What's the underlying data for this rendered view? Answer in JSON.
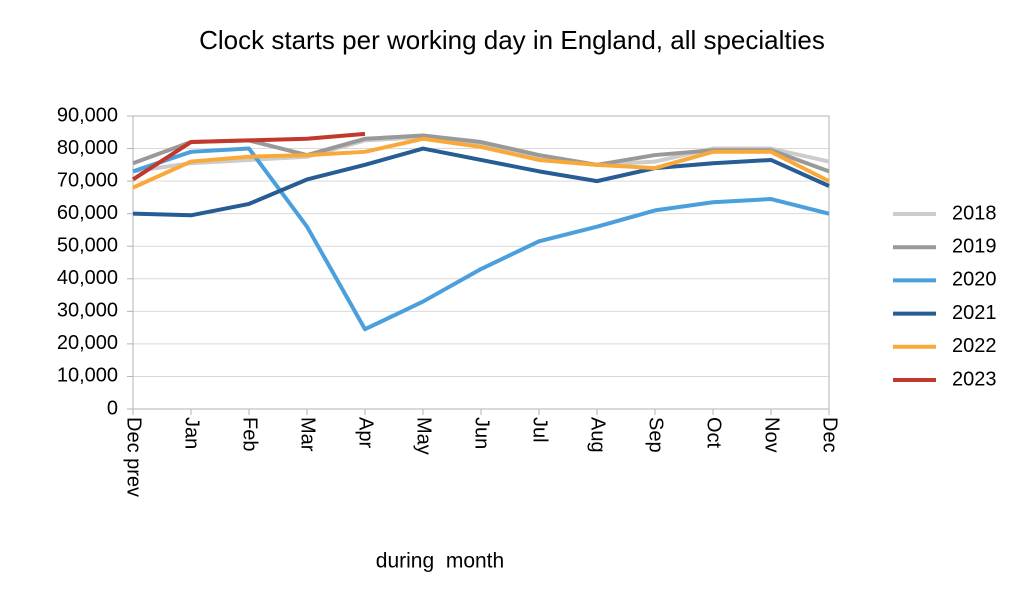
{
  "chart_data": {
    "type": "line",
    "title": "Clock starts per working day in England, all specialties",
    "x_label": "during  month",
    "categories": [
      "Dec prev",
      "Jan",
      "Feb",
      "Mar",
      "Apr",
      "May",
      "Jun",
      "Jul",
      "Aug",
      "Sep",
      "Oct",
      "Nov",
      "Dec"
    ],
    "series": [
      {
        "name": "2018",
        "color": "#cccccc",
        "values": [
          73000,
          75500,
          76500,
          77500,
          82500,
          83500,
          81000,
          77000,
          75000,
          76000,
          80000,
          80000,
          76000
        ]
      },
      {
        "name": "2019",
        "color": "#999999",
        "values": [
          75500,
          82000,
          82500,
          78000,
          83000,
          84000,
          82000,
          78000,
          75000,
          78000,
          79500,
          79500,
          73000
        ]
      },
      {
        "name": "2020",
        "color": "#4a9fdc",
        "values": [
          73000,
          79000,
          80000,
          56000,
          24500,
          33000,
          43000,
          51500,
          56000,
          61000,
          63500,
          64500,
          60000
        ]
      },
      {
        "name": "2021",
        "color": "#275c94",
        "values": [
          60000,
          59500,
          63000,
          70500,
          75000,
          80000,
          76500,
          73000,
          70000,
          74000,
          75500,
          76500,
          68500
        ]
      },
      {
        "name": "2022",
        "color": "#f9a93a",
        "values": [
          68000,
          76000,
          77500,
          78000,
          79000,
          83000,
          80500,
          76500,
          75000,
          74000,
          79000,
          79000,
          70000
        ]
      },
      {
        "name": "2023",
        "color": "#c0392b",
        "values": [
          70500,
          82000,
          82500,
          83000,
          84500,
          null,
          null,
          null,
          null,
          null,
          null,
          null,
          null
        ]
      }
    ],
    "ylim": [
      0,
      90000
    ],
    "yticks": [
      0,
      {
        "value": 10000,
        "label": "10,000"
      },
      {
        "value": 20000,
        "label": "20,000"
      },
      {
        "value": 30000,
        "label": "30,000"
      },
      {
        "value": 40000,
        "label": "40,000"
      },
      {
        "value": 50000,
        "label": "50,000"
      },
      {
        "value": 60000,
        "label": "60,000"
      },
      {
        "value": 70000,
        "label": "70,000"
      },
      {
        "value": 80000,
        "label": "80,000"
      },
      {
        "value": 90000,
        "label": "90,000"
      }
    ],
    "grid": true,
    "legend": "right"
  }
}
